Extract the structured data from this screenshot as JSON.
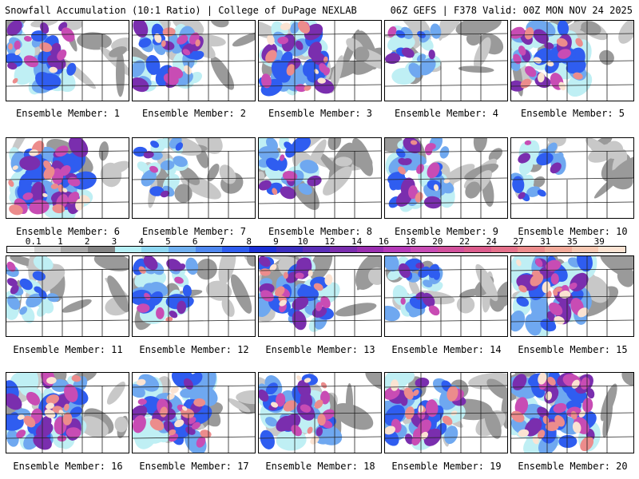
{
  "header": {
    "left_title": "Snowfall Accumulation (10:1 Ratio) | College of DuPage NEXLAB",
    "right_title": "06Z GEFS | F378 Valid: 00Z MON NOV 24 2025"
  },
  "colorbar": {
    "labels": [
      "0.1",
      "1",
      "2",
      "3",
      "4",
      "5",
      "6",
      "7",
      "8",
      "9",
      "10",
      "12",
      "14",
      "16",
      "18",
      "20",
      "22",
      "24",
      "27",
      "31",
      "35",
      "39"
    ],
    "colors": [
      "#f2f2f2",
      "#d0d0d0",
      "#a8a8a8",
      "#838383",
      "#b6f0f6",
      "#8ed8f2",
      "#6fb0f0",
      "#4f88f0",
      "#2f5df0",
      "#1a2fd6",
      "#3b2ec0",
      "#5a2eb8",
      "#7a2eae",
      "#9a2fb0",
      "#b53ab8",
      "#c84cb4",
      "#d2519c",
      "#dc5c8c",
      "#e4708a",
      "#ec8c8c",
      "#f2aa9a",
      "#f7c8b2",
      "#fbe3d2"
    ]
  },
  "members": [
    {
      "caption": "Ensemble Member: 1"
    },
    {
      "caption": "Ensemble Member: 2"
    },
    {
      "caption": "Ensemble Member: 3"
    },
    {
      "caption": "Ensemble Member: 4"
    },
    {
      "caption": "Ensemble Member: 5"
    },
    {
      "caption": "Ensemble Member: 6"
    },
    {
      "caption": "Ensemble Member: 7"
    },
    {
      "caption": "Ensemble Member: 8"
    },
    {
      "caption": "Ensemble Member: 9"
    },
    {
      "caption": "Ensemble Member: 10"
    },
    {
      "caption": "Ensemble Member: 11"
    },
    {
      "caption": "Ensemble Member: 12"
    },
    {
      "caption": "Ensemble Member: 13"
    },
    {
      "caption": "Ensemble Member: 14"
    },
    {
      "caption": "Ensemble Member: 15"
    },
    {
      "caption": "Ensemble Member: 16"
    },
    {
      "caption": "Ensemble Member: 17"
    },
    {
      "caption": "Ensemble Member: 18"
    },
    {
      "caption": "Ensemble Member: 19"
    },
    {
      "caption": "Ensemble Member: 20"
    }
  ]
}
